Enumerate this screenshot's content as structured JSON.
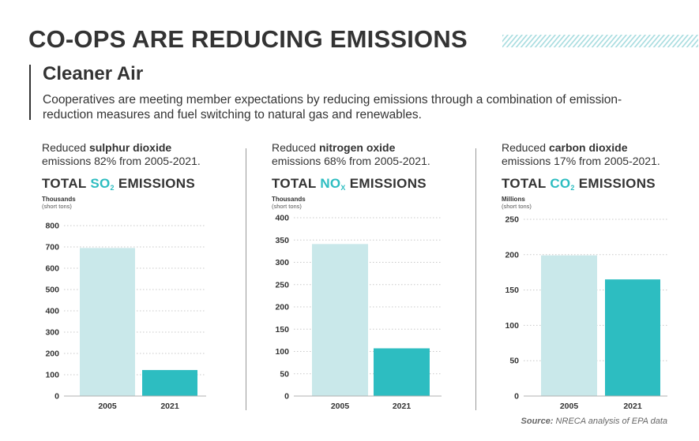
{
  "title": "CO-OPS ARE REDUCING EMISSIONS",
  "subtitle": "Cleaner Air",
  "intro": "Cooperatives are meeting member expectations by reducing emissions through a combination of emission-reduction measures and fuel switching to natural gas and renewables.",
  "colors": {
    "bar_2005": "#c9e8ea",
    "bar_2021": "#2dbdc1",
    "accent": "#2dbdc1",
    "text": "#333333"
  },
  "panels": [
    {
      "desc_prefix": "Reduced ",
      "desc_bold": "sulphur dioxide",
      "desc_line2": "emissions 82% from 2005-2021.",
      "chart_title_pre": "TOTAL ",
      "chart_title_chem": "SO",
      "chart_title_sub": "2",
      "chart_title_post": " EMISSIONS",
      "unit_main": "Thousands",
      "unit_sub": "(short tons)"
    },
    {
      "desc_prefix": "Reduced ",
      "desc_bold": "nitrogen oxide",
      "desc_line2": "emissions 68% from 2005-2021.",
      "chart_title_pre": "TOTAL ",
      "chart_title_chem": "NO",
      "chart_title_sub": "X",
      "chart_title_post": " EMISSIONS",
      "unit_main": "Thousands",
      "unit_sub": "(short tons)"
    },
    {
      "desc_prefix": "Reduced ",
      "desc_bold": "carbon dioxide",
      "desc_line2": "emissions 17% from 2005-2021.",
      "chart_title_pre": "TOTAL ",
      "chart_title_chem": "CO",
      "chart_title_sub": "2",
      "chart_title_post": " EMISSIONS",
      "unit_main": "Millions",
      "unit_sub": "(short tons)"
    }
  ],
  "chart_data": [
    {
      "type": "bar",
      "title": "TOTAL SO2 EMISSIONS",
      "ylabel": "Thousands (short tons)",
      "xlabel": "",
      "categories": [
        "2005",
        "2021"
      ],
      "values": [
        695,
        122
      ],
      "ylim": [
        0,
        800
      ],
      "yticks": [
        0,
        100,
        200,
        300,
        400,
        500,
        600,
        700,
        800
      ],
      "grid": true
    },
    {
      "type": "bar",
      "title": "TOTAL NOX EMISSIONS",
      "ylabel": "Thousands (short tons)",
      "xlabel": "",
      "categories": [
        "2005",
        "2021"
      ],
      "values": [
        341,
        107
      ],
      "ylim": [
        0,
        400
      ],
      "yticks": [
        0,
        50,
        100,
        150,
        200,
        250,
        300,
        350,
        400
      ],
      "grid": true
    },
    {
      "type": "bar",
      "title": "TOTAL CO2 EMISSIONS",
      "ylabel": "Millions (short tons)",
      "xlabel": "",
      "categories": [
        "2005",
        "2021"
      ],
      "values": [
        199,
        165
      ],
      "ylim": [
        0,
        250
      ],
      "yticks": [
        0,
        50,
        100,
        150,
        200,
        250
      ],
      "grid": true
    }
  ],
  "source_label": "Source:",
  "source_text": " NRECA analysis of EPA data"
}
